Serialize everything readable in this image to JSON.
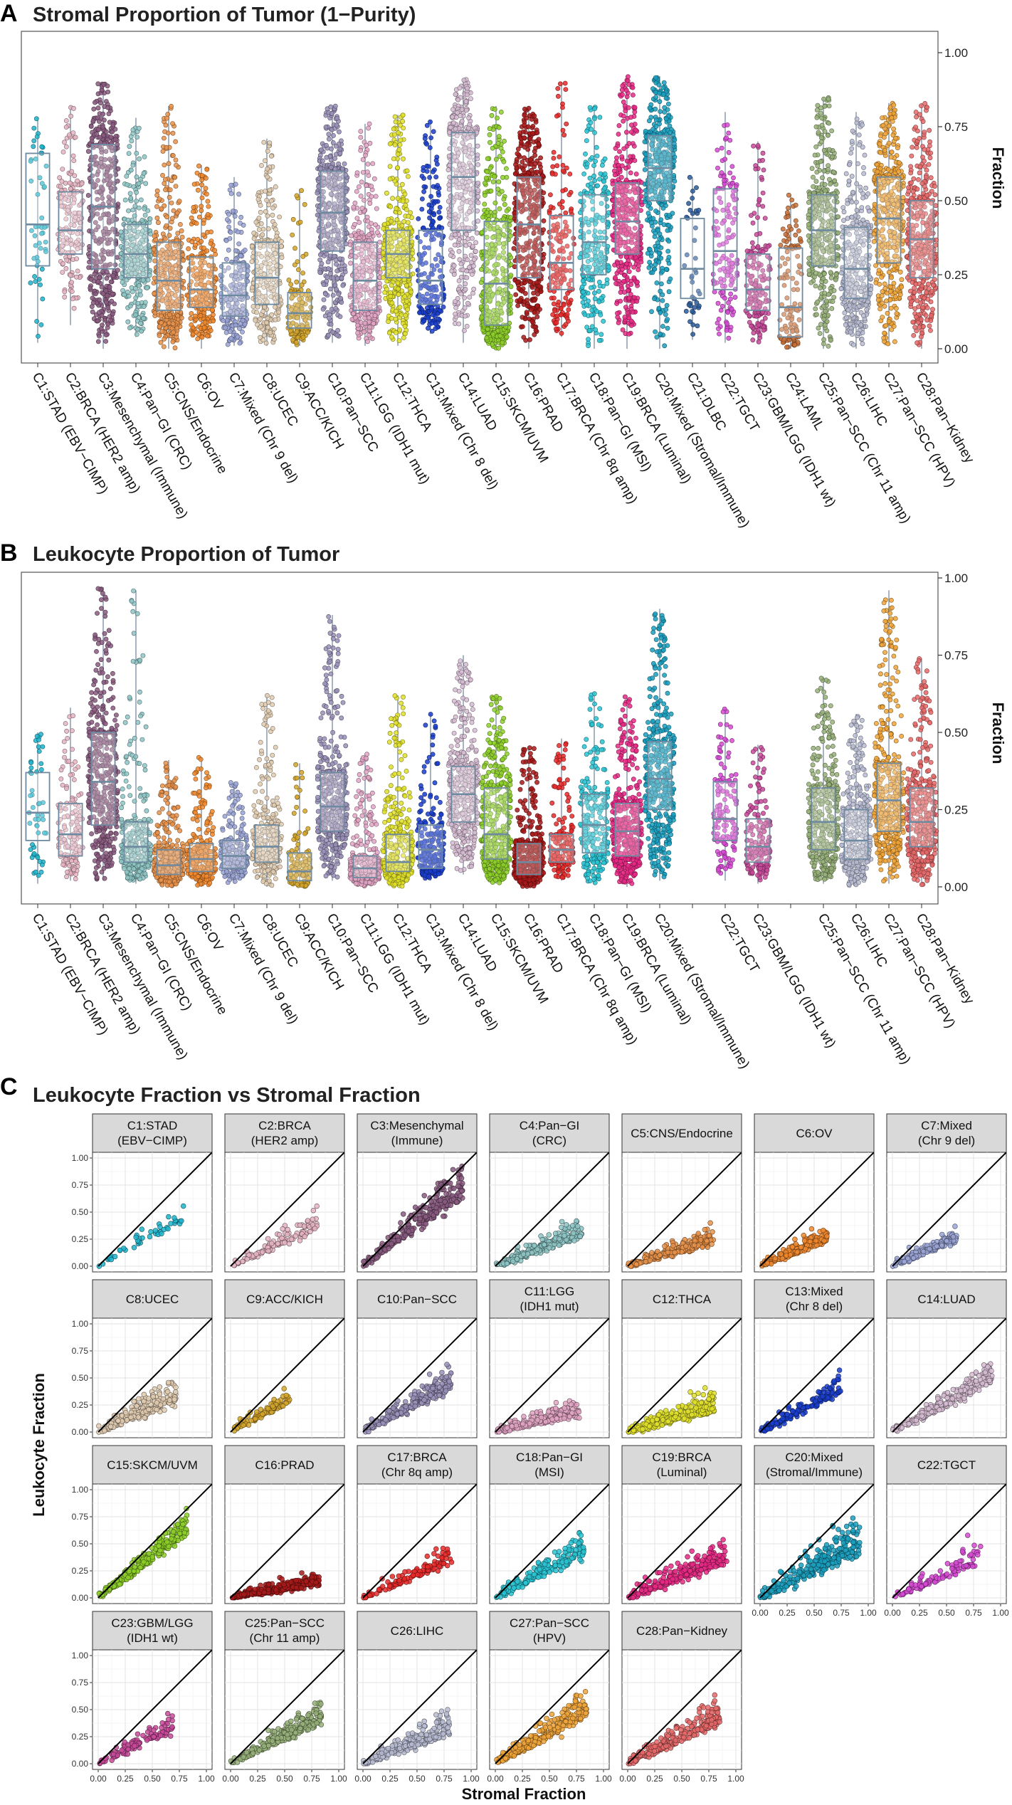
{
  "panels": {
    "A": {
      "letter": "A",
      "title": "Stromal Proportion of Tumor (1−Purity)",
      "ylabel": "Fraction",
      "yticks": [
        "0.00",
        "0.25",
        "0.50",
        "0.75",
        "1.00"
      ]
    },
    "B": {
      "letter": "B",
      "title": "Leukocyte Proportion of Tumor",
      "ylabel": "Fraction",
      "yticks": [
        "0.00",
        "0.25",
        "0.50",
        "0.75",
        "1.00"
      ]
    },
    "C": {
      "letter": "C",
      "title": "Leukocyte Fraction vs Stromal Fraction",
      "xlabel": "Stromal Fraction",
      "ylabel": "Leukocyte Fraction",
      "xticks": [
        "0.00",
        "0.25",
        "0.50",
        "0.75",
        "1.00"
      ],
      "yticks": [
        "0.00",
        "0.25",
        "0.50",
        "0.75",
        "1.00"
      ]
    }
  },
  "chart_data": [
    {
      "type": "box",
      "title": "Stromal Proportion of Tumor (1−Purity)",
      "ylabel": "Fraction",
      "ylim": [
        0,
        1
      ],
      "grid": false,
      "categories": [
        "C1:STAD (EBV−CIMP)",
        "C2:BRCA (HER2 amp)",
        "C3:Mesenchymal (Immune)",
        "C4:Pan−GI (CRC)",
        "C5:CNS/Endocrine",
        "C6:OV",
        "C7:Mixed (Chr 9 del)",
        "C8:UCEC",
        "C9:ACC/KICH",
        "C10:Pan−SCC",
        "C11:LGG (IDH1 mut)",
        "C12:THCA",
        "C13:Mixed (Chr 8 del)",
        "C14:LUAD",
        "C15:SKCM/UVM",
        "C16:PRAD",
        "C17:BRCA (Chr 8q amp)",
        "C18:Pan−GI (MSI)",
        "C19:BRCA (Luminal)",
        "C20:Mixed (Stromal/Immune)",
        "C21:DLBC",
        "C22:TGCT",
        "C23:GBM/LGG (IDH1 wt)",
        "C24:LAML",
        "C25:Pan−SCC (Chr 11 amp)",
        "C26:LIHC",
        "C27:Pan−SCC (HPV)",
        "C28:Pan−Kidney"
      ],
      "colors": [
        "#1fb4cc",
        "#e6b4c3",
        "#8a5a80",
        "#8ec6c6",
        "#e8924a",
        "#f0882e",
        "#9aa4d6",
        "#e0cbb0",
        "#d4a52a",
        "#9a90b8",
        "#e2a4c4",
        "#e0e02a",
        "#1a3ecc",
        "#d6bcd2",
        "#8ed02a",
        "#a81a1a",
        "#e82a2a",
        "#2ac4d4",
        "#e82a86",
        "#1aa0c0",
        "#2a5a9a",
        "#d64ad4",
        "#c84a9a",
        "#c8703a",
        "#98b27a",
        "#b8bcd2",
        "#f0a43a",
        "#e86a6a"
      ],
      "box_stats": [
        {
          "q1": 0.28,
          "median": 0.42,
          "q3": 0.66,
          "min": 0.02,
          "max": 0.78,
          "n": 50
        },
        {
          "q1": 0.32,
          "median": 0.4,
          "q3": 0.53,
          "min": 0.08,
          "max": 0.82,
          "n": 170
        },
        {
          "q1": 0.27,
          "median": 0.48,
          "q3": 0.69,
          "min": 0.0,
          "max": 0.9,
          "n": 650
        },
        {
          "q1": 0.24,
          "median": 0.32,
          "q3": 0.42,
          "min": 0.04,
          "max": 0.78,
          "n": 300
        },
        {
          "q1": 0.13,
          "median": 0.23,
          "q3": 0.36,
          "min": 0.0,
          "max": 0.82,
          "n": 380
        },
        {
          "q1": 0.14,
          "median": 0.2,
          "q3": 0.31,
          "min": 0.0,
          "max": 0.62,
          "n": 260
        },
        {
          "q1": 0.11,
          "median": 0.18,
          "q3": 0.29,
          "min": 0.01,
          "max": 0.58,
          "n": 220
        },
        {
          "q1": 0.15,
          "median": 0.24,
          "q3": 0.36,
          "min": 0.01,
          "max": 0.71,
          "n": 280
        },
        {
          "q1": 0.07,
          "median": 0.12,
          "q3": 0.19,
          "min": 0.01,
          "max": 0.54,
          "n": 140
        },
        {
          "q1": 0.33,
          "median": 0.46,
          "q3": 0.6,
          "min": 0.02,
          "max": 0.82,
          "n": 540
        },
        {
          "q1": 0.13,
          "median": 0.23,
          "q3": 0.36,
          "min": 0.01,
          "max": 0.76,
          "n": 330
        },
        {
          "q1": 0.24,
          "median": 0.32,
          "q3": 0.4,
          "min": 0.01,
          "max": 0.79,
          "n": 400
        },
        {
          "q1": 0.15,
          "median": 0.23,
          "q3": 0.4,
          "min": 0.05,
          "max": 0.77,
          "n": 210
        },
        {
          "q1": 0.4,
          "median": 0.58,
          "q3": 0.73,
          "min": 0.02,
          "max": 0.91,
          "n": 450
        },
        {
          "q1": 0.08,
          "median": 0.22,
          "q3": 0.43,
          "min": 0.0,
          "max": 0.82,
          "n": 520
        },
        {
          "q1": 0.24,
          "median": 0.42,
          "q3": 0.58,
          "min": 0.0,
          "max": 0.82,
          "n": 440
        },
        {
          "q1": 0.2,
          "median": 0.29,
          "q3": 0.45,
          "min": 0.04,
          "max": 0.9,
          "n": 170
        },
        {
          "q1": 0.25,
          "median": 0.36,
          "q3": 0.52,
          "min": 0.0,
          "max": 0.82,
          "n": 260
        },
        {
          "q1": 0.32,
          "median": 0.43,
          "q3": 0.56,
          "min": 0.0,
          "max": 0.92,
          "n": 530
        },
        {
          "q1": 0.5,
          "median": 0.61,
          "q3": 0.72,
          "min": 0.0,
          "max": 0.92,
          "n": 1200
        },
        {
          "q1": 0.17,
          "median": 0.27,
          "q3": 0.44,
          "min": 0.03,
          "max": 0.58,
          "n": 40
        },
        {
          "q1": 0.2,
          "median": 0.33,
          "q3": 0.54,
          "min": 0.02,
          "max": 0.8,
          "n": 150
        },
        {
          "q1": 0.13,
          "median": 0.2,
          "q3": 0.32,
          "min": 0.02,
          "max": 0.7,
          "n": 170
        },
        {
          "q1": 0.04,
          "median": 0.14,
          "q3": 0.34,
          "min": 0.0,
          "max": 0.52,
          "n": 120
        },
        {
          "q1": 0.28,
          "median": 0.4,
          "q3": 0.52,
          "min": 0.0,
          "max": 0.85,
          "n": 400
        },
        {
          "q1": 0.17,
          "median": 0.27,
          "q3": 0.41,
          "min": 0.0,
          "max": 0.8,
          "n": 350
        },
        {
          "q1": 0.29,
          "median": 0.44,
          "q3": 0.58,
          "min": 0.01,
          "max": 0.83,
          "n": 750
        },
        {
          "q1": 0.24,
          "median": 0.37,
          "q3": 0.5,
          "min": 0.0,
          "max": 0.83,
          "n": 570
        }
      ]
    },
    {
      "type": "box",
      "title": "Leukocyte Proportion of Tumor",
      "ylabel": "Fraction",
      "ylim": [
        0,
        1
      ],
      "grid": false,
      "categories": [
        "C1:STAD (EBV−CIMP)",
        "C2:BRCA (HER2 amp)",
        "C3:Mesenchymal (Immune)",
        "C4:Pan−GI (CRC)",
        "C5:CNS/Endocrine",
        "C6:OV",
        "C7:Mixed (Chr 9 del)",
        "C8:UCEC",
        "C9:ACC/KICH",
        "C10:Pan−SCC",
        "C11:LGG (IDH1 mut)",
        "C12:THCA",
        "C13:Mixed (Chr 8 del)",
        "C14:LUAD",
        "C15:SKCM/UVM",
        "C16:PRAD",
        "C17:BRCA (Chr 8q amp)",
        "C18:Pan−GI (MSI)",
        "C19:BRCA (Luminal)",
        "C20:Mixed (Stromal/Immune)",
        "",
        "C22:TGCT",
        "C23:GBM/LGG (IDH1 wt)",
        "",
        "C25:Pan−SCC (Chr 11 amp)",
        "C26:LIHC",
        "C27:Pan−SCC (HPV)",
        "C28:Pan−Kidney"
      ],
      "colors": [
        "#1fb4cc",
        "#e6b4c3",
        "#8a5a80",
        "#8ec6c6",
        "#e8924a",
        "#f0882e",
        "#9aa4d6",
        "#e0cbb0",
        "#d4a52a",
        "#9a90b8",
        "#e2a4c4",
        "#e0e02a",
        "#1a3ecc",
        "#d6bcd2",
        "#8ed02a",
        "#a81a1a",
        "#e82a2a",
        "#2ac4d4",
        "#e82a86",
        "#1aa0c0",
        "#2a5a9a",
        "#d64ad4",
        "#c84a9a",
        "#c8703a",
        "#98b27a",
        "#b8bcd2",
        "#f0a43a",
        "#e86a6a"
      ],
      "box_stats": [
        {
          "q1": 0.15,
          "median": 0.24,
          "q3": 0.37,
          "min": 0.01,
          "max": 0.5,
          "n": 50
        },
        {
          "q1": 0.1,
          "median": 0.17,
          "q3": 0.27,
          "min": 0.02,
          "max": 0.58,
          "n": 160
        },
        {
          "q1": 0.2,
          "median": 0.34,
          "q3": 0.5,
          "min": 0.02,
          "max": 0.97,
          "n": 620
        },
        {
          "q1": 0.08,
          "median": 0.13,
          "q3": 0.21,
          "min": 0.01,
          "max": 0.96,
          "n": 290
        },
        {
          "q1": 0.04,
          "median": 0.07,
          "q3": 0.12,
          "min": 0.0,
          "max": 0.41,
          "n": 360
        },
        {
          "q1": 0.05,
          "median": 0.09,
          "q3": 0.14,
          "min": 0.0,
          "max": 0.42,
          "n": 250
        },
        {
          "q1": 0.06,
          "median": 0.1,
          "q3": 0.15,
          "min": 0.01,
          "max": 0.34,
          "n": 210
        },
        {
          "q1": 0.08,
          "median": 0.13,
          "q3": 0.2,
          "min": 0.0,
          "max": 0.62,
          "n": 270
        },
        {
          "q1": 0.02,
          "median": 0.05,
          "q3": 0.11,
          "min": 0.0,
          "max": 0.4,
          "n": 130
        },
        {
          "q1": 0.18,
          "median": 0.26,
          "q3": 0.37,
          "min": 0.02,
          "max": 0.88,
          "n": 520
        },
        {
          "q1": 0.03,
          "median": 0.06,
          "q3": 0.1,
          "min": 0.0,
          "max": 0.43,
          "n": 310
        },
        {
          "q1": 0.05,
          "median": 0.08,
          "q3": 0.17,
          "min": 0.0,
          "max": 0.62,
          "n": 380
        },
        {
          "q1": 0.06,
          "median": 0.12,
          "q3": 0.2,
          "min": 0.02,
          "max": 0.56,
          "n": 200
        },
        {
          "q1": 0.21,
          "median": 0.3,
          "q3": 0.39,
          "min": 0.04,
          "max": 0.75,
          "n": 440
        },
        {
          "q1": 0.09,
          "median": 0.17,
          "q3": 0.32,
          "min": 0.01,
          "max": 0.62,
          "n": 500
        },
        {
          "q1": 0.04,
          "median": 0.08,
          "q3": 0.14,
          "min": 0.0,
          "max": 0.45,
          "n": 420
        },
        {
          "q1": 0.08,
          "median": 0.12,
          "q3": 0.17,
          "min": 0.02,
          "max": 0.48,
          "n": 160
        },
        {
          "q1": 0.11,
          "median": 0.2,
          "q3": 0.3,
          "min": 0.01,
          "max": 0.63,
          "n": 250
        },
        {
          "q1": 0.1,
          "median": 0.18,
          "q3": 0.27,
          "min": 0.0,
          "max": 0.62,
          "n": 510
        },
        {
          "q1": 0.25,
          "median": 0.35,
          "q3": 0.47,
          "min": 0.02,
          "max": 0.9,
          "n": 1150
        },
        null,
        {
          "q1": 0.15,
          "median": 0.22,
          "q3": 0.34,
          "min": 0.02,
          "max": 0.58,
          "n": 140
        },
        {
          "q1": 0.08,
          "median": 0.13,
          "q3": 0.22,
          "min": 0.01,
          "max": 0.46,
          "n": 160
        },
        null,
        {
          "q1": 0.12,
          "median": 0.21,
          "q3": 0.32,
          "min": 0.01,
          "max": 0.68,
          "n": 380
        },
        {
          "q1": 0.09,
          "median": 0.15,
          "q3": 0.25,
          "min": 0.0,
          "max": 0.56,
          "n": 330
        },
        {
          "q1": 0.18,
          "median": 0.28,
          "q3": 0.4,
          "min": 0.01,
          "max": 0.96,
          "n": 720
        },
        {
          "q1": 0.13,
          "median": 0.21,
          "q3": 0.32,
          "min": 0.0,
          "max": 0.74,
          "n": 550
        }
      ]
    },
    {
      "type": "scatter",
      "title": "Leukocyte Fraction vs Stromal Fraction",
      "xlabel": "Stromal Fraction",
      "ylabel": "Leukocyte Fraction",
      "xlim": [
        0,
        1
      ],
      "ylim": [
        0,
        1
      ],
      "grid": true,
      "reference_line": "y = x",
      "facets": [
        {
          "label": [
            "C1:STAD",
            "(EBV−CIMP)"
          ],
          "color": "#1fb4cc",
          "n": 45,
          "slope": 0.58,
          "spread": 0.06,
          "xmax": 0.8
        },
        {
          "label": [
            "C2:BRCA",
            "(HER2 amp)"
          ],
          "color": "#e6b4c3",
          "n": 110,
          "slope": 0.48,
          "spread": 0.07,
          "xmax": 0.8
        },
        {
          "label": [
            "C3:Mesenchymal",
            "(Immune)"
          ],
          "color": "#8a5a80",
          "n": 420,
          "slope": 0.78,
          "spread": 0.1,
          "xmax": 0.92
        },
        {
          "label": [
            "C4:Pan−GI",
            "(CRC)"
          ],
          "color": "#8ec6c6",
          "n": 220,
          "slope": 0.4,
          "spread": 0.07,
          "xmax": 0.8
        },
        {
          "label": [
            "C5:CNS/Endocrine"
          ],
          "color": "#e8924a",
          "n": 230,
          "slope": 0.32,
          "spread": 0.06,
          "xmax": 0.8
        },
        {
          "label": [
            "C6:OV"
          ],
          "color": "#f0882e",
          "n": 200,
          "slope": 0.42,
          "spread": 0.06,
          "xmax": 0.62
        },
        {
          "label": [
            "C7:Mixed",
            "(Chr 9 del)"
          ],
          "color": "#9aa4d6",
          "n": 150,
          "slope": 0.45,
          "spread": 0.06,
          "xmax": 0.6
        },
        {
          "label": [
            "C8:UCEC"
          ],
          "color": "#e0cbb0",
          "n": 200,
          "slope": 0.45,
          "spread": 0.09,
          "xmax": 0.72
        },
        {
          "label": [
            "C9:ACC/KICH"
          ],
          "color": "#d4a52a",
          "n": 90,
          "slope": 0.55,
          "spread": 0.06,
          "xmax": 0.55
        },
        {
          "label": [
            "C10:Pan−SCC"
          ],
          "color": "#9a90b8",
          "n": 380,
          "slope": 0.55,
          "spread": 0.08,
          "xmax": 0.82
        },
        {
          "label": [
            "C11:LGG",
            "(IDH1 mut)"
          ],
          "color": "#e2a4c4",
          "n": 230,
          "slope": 0.25,
          "spread": 0.06,
          "xmax": 0.78
        },
        {
          "label": [
            "C12:THCA"
          ],
          "color": "#e0e02a",
          "n": 260,
          "slope": 0.3,
          "spread": 0.08,
          "xmax": 0.8
        },
        {
          "label": [
            "C13:Mixed",
            "(Chr 8 del)"
          ],
          "color": "#1a3ecc",
          "n": 150,
          "slope": 0.55,
          "spread": 0.07,
          "xmax": 0.75
        },
        {
          "label": [
            "C14:LUAD"
          ],
          "color": "#d6bcd2",
          "n": 320,
          "slope": 0.55,
          "spread": 0.07,
          "xmax": 0.92
        },
        {
          "label": [
            "C15:SKCM/UVM"
          ],
          "color": "#8ed02a",
          "n": 360,
          "slope": 0.78,
          "spread": 0.07,
          "xmax": 0.82
        },
        {
          "label": [
            "C16:PRAD"
          ],
          "color": "#a81a1a",
          "n": 320,
          "slope": 0.18,
          "spread": 0.05,
          "xmax": 0.82
        },
        {
          "label": [
            "C17:BRCA",
            "(Chr 8q amp)"
          ],
          "color": "#e82a2a",
          "n": 120,
          "slope": 0.45,
          "spread": 0.07,
          "xmax": 0.82
        },
        {
          "label": [
            "C18:Pan−GI",
            "(MSI)"
          ],
          "color": "#2ac4d4",
          "n": 190,
          "slope": 0.55,
          "spread": 0.08,
          "xmax": 0.82
        },
        {
          "label": [
            "C19:BRCA",
            "(Luminal)"
          ],
          "color": "#e82a86",
          "n": 360,
          "slope": 0.42,
          "spread": 0.08,
          "xmax": 0.92
        },
        {
          "label": [
            "C20:Mixed",
            "(Stromal/Immune)"
          ],
          "color": "#1aa0c0",
          "n": 700,
          "slope": 0.55,
          "spread": 0.13,
          "xmax": 0.92
        },
        {
          "label": [
            "C22:TGCT"
          ],
          "color": "#d64ad4",
          "n": 110,
          "slope": 0.45,
          "spread": 0.07,
          "xmax": 0.82
        },
        {
          "label": [
            "C23:GBM/LGG",
            "(IDH1 wt)"
          ],
          "color": "#c84a9a",
          "n": 120,
          "slope": 0.5,
          "spread": 0.07,
          "xmax": 0.7
        },
        {
          "label": [
            "C25:Pan−SCC",
            "(Chr 11 amp)"
          ],
          "color": "#98b27a",
          "n": 260,
          "slope": 0.52,
          "spread": 0.07,
          "xmax": 0.85
        },
        {
          "label": [
            "C26:LIHC"
          ],
          "color": "#b8bcd2",
          "n": 240,
          "slope": 0.4,
          "spread": 0.08,
          "xmax": 0.8
        },
        {
          "label": [
            "C27:Pan−SCC",
            "(HPV)"
          ],
          "color": "#f0a43a",
          "n": 520,
          "slope": 0.58,
          "spread": 0.09,
          "xmax": 0.85
        },
        {
          "label": [
            "C28:Pan−Kidney"
          ],
          "color": "#e86a6a",
          "n": 420,
          "slope": 0.5,
          "spread": 0.08,
          "xmax": 0.85
        }
      ]
    }
  ]
}
